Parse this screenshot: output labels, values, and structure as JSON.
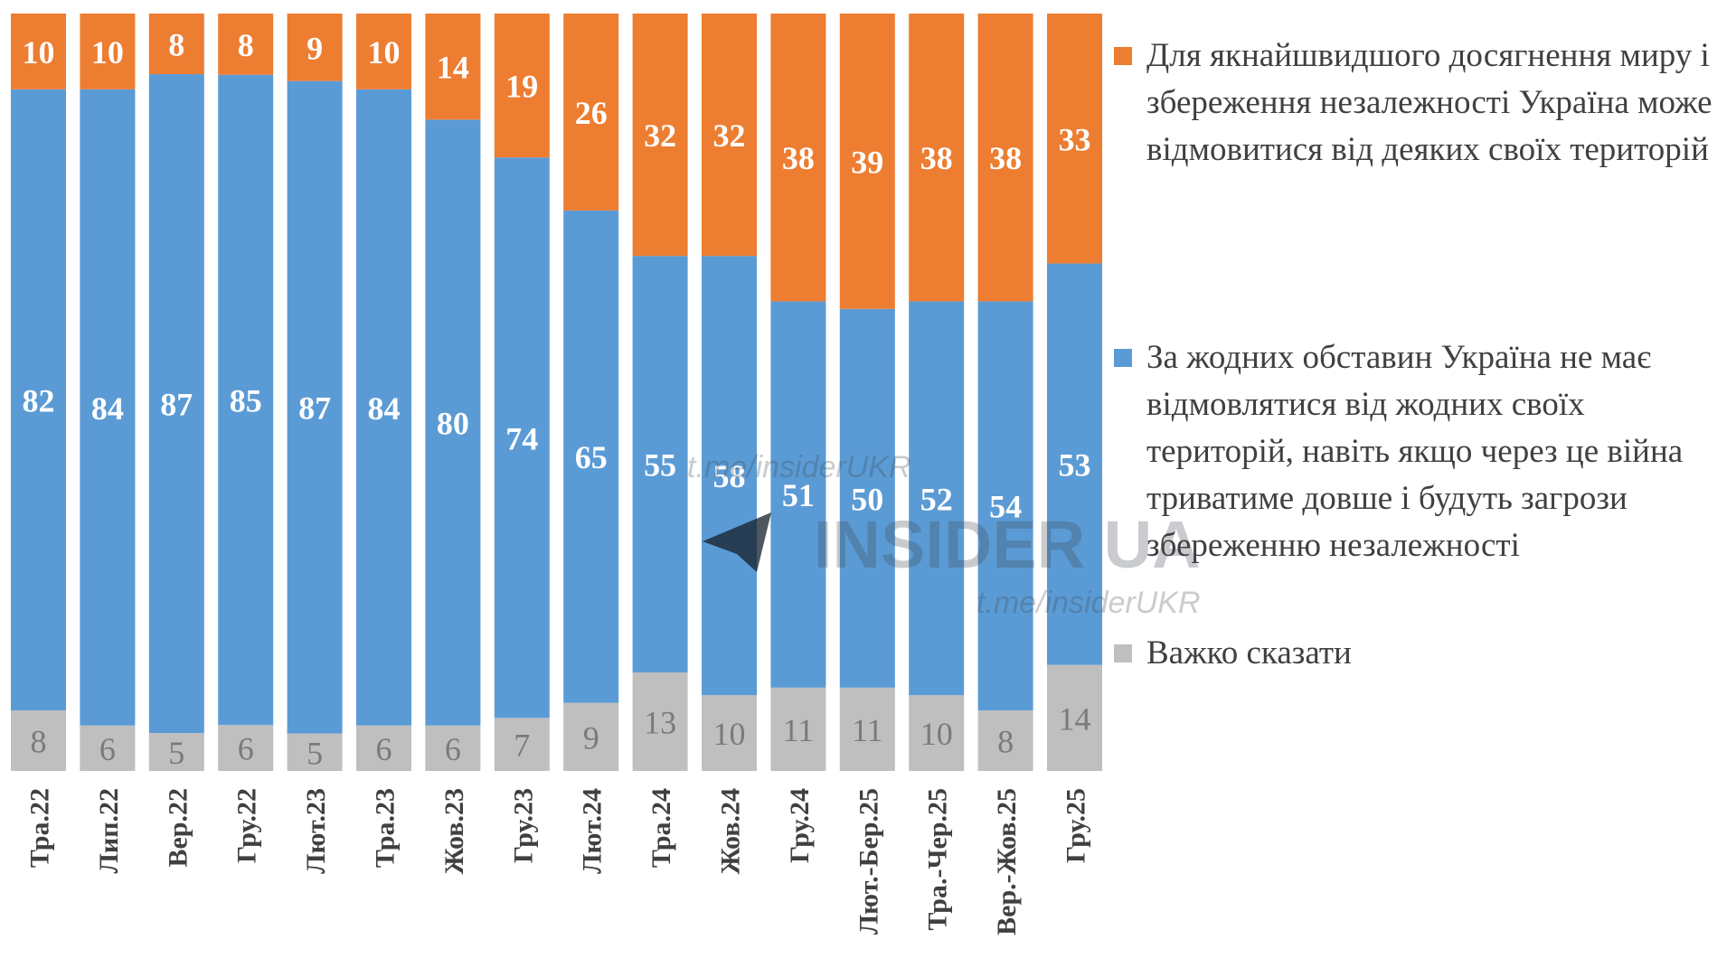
{
  "chart_data": {
    "type": "bar",
    "stacked": true,
    "percent": true,
    "categories": [
      "Тра.22",
      "Лип.22",
      "Вер.22",
      "Гру.22",
      "Лют.23",
      "Тра.23",
      "Жов.23",
      "Гру.23",
      "Лют.24",
      "Тра.24",
      "Жов.24",
      "Гру.24",
      "Лют.-Бер.25",
      "Тра.-Чер.25",
      "Вер.-Жов.25",
      "Гру.25"
    ],
    "series": [
      {
        "name": "Важко сказати",
        "color": "#BFBFBF",
        "values": [
          8,
          6,
          5,
          6,
          5,
          6,
          6,
          7,
          9,
          13,
          10,
          11,
          11,
          10,
          8,
          14
        ]
      },
      {
        "name": "За жодних обставин Україна не має відмовлятися від жодних своїх територій, навіть якщо через це війна триватиме довше і будуть загрози збереженню незалежності",
        "color": "#5B9BD5",
        "values": [
          82,
          84,
          87,
          85,
          87,
          84,
          80,
          74,
          65,
          55,
          58,
          51,
          50,
          52,
          54,
          53
        ]
      },
      {
        "name": "Для якнайшвидшого досягнення миру і збереження незалежності Україна може відмовитися від деяких своїх територій",
        "color": "#ED7D31",
        "values": [
          10,
          10,
          8,
          8,
          9,
          10,
          14,
          19,
          26,
          32,
          32,
          38,
          39,
          38,
          38,
          33
        ]
      }
    ],
    "ylim": [
      0,
      100
    ],
    "grid": false,
    "legend_placement": "right",
    "title": "",
    "xlabel": "",
    "ylabel": ""
  },
  "legend": {
    "items": [
      {
        "label": "Для якнайшвидшого досягнення миру і збереження незалежності Україна може відмовитися від деяких своїх територій",
        "color": "#ED7D31"
      },
      {
        "label": "За жодних обставин Україна не має відмовлятися від жодних своїх територій, навіть якщо через це війна триватиме довше і будуть загрози збереженню незалежності",
        "color": "#5B9BD5"
      },
      {
        "label": "Важко сказати",
        "color": "#BFBFBF"
      }
    ]
  },
  "watermark": {
    "brand": "INSIDER UA",
    "link_top": "t.me/insiderUKR",
    "link_bottom": "t.me/insiderUKR",
    "icon": "telegram-plane-icon"
  }
}
